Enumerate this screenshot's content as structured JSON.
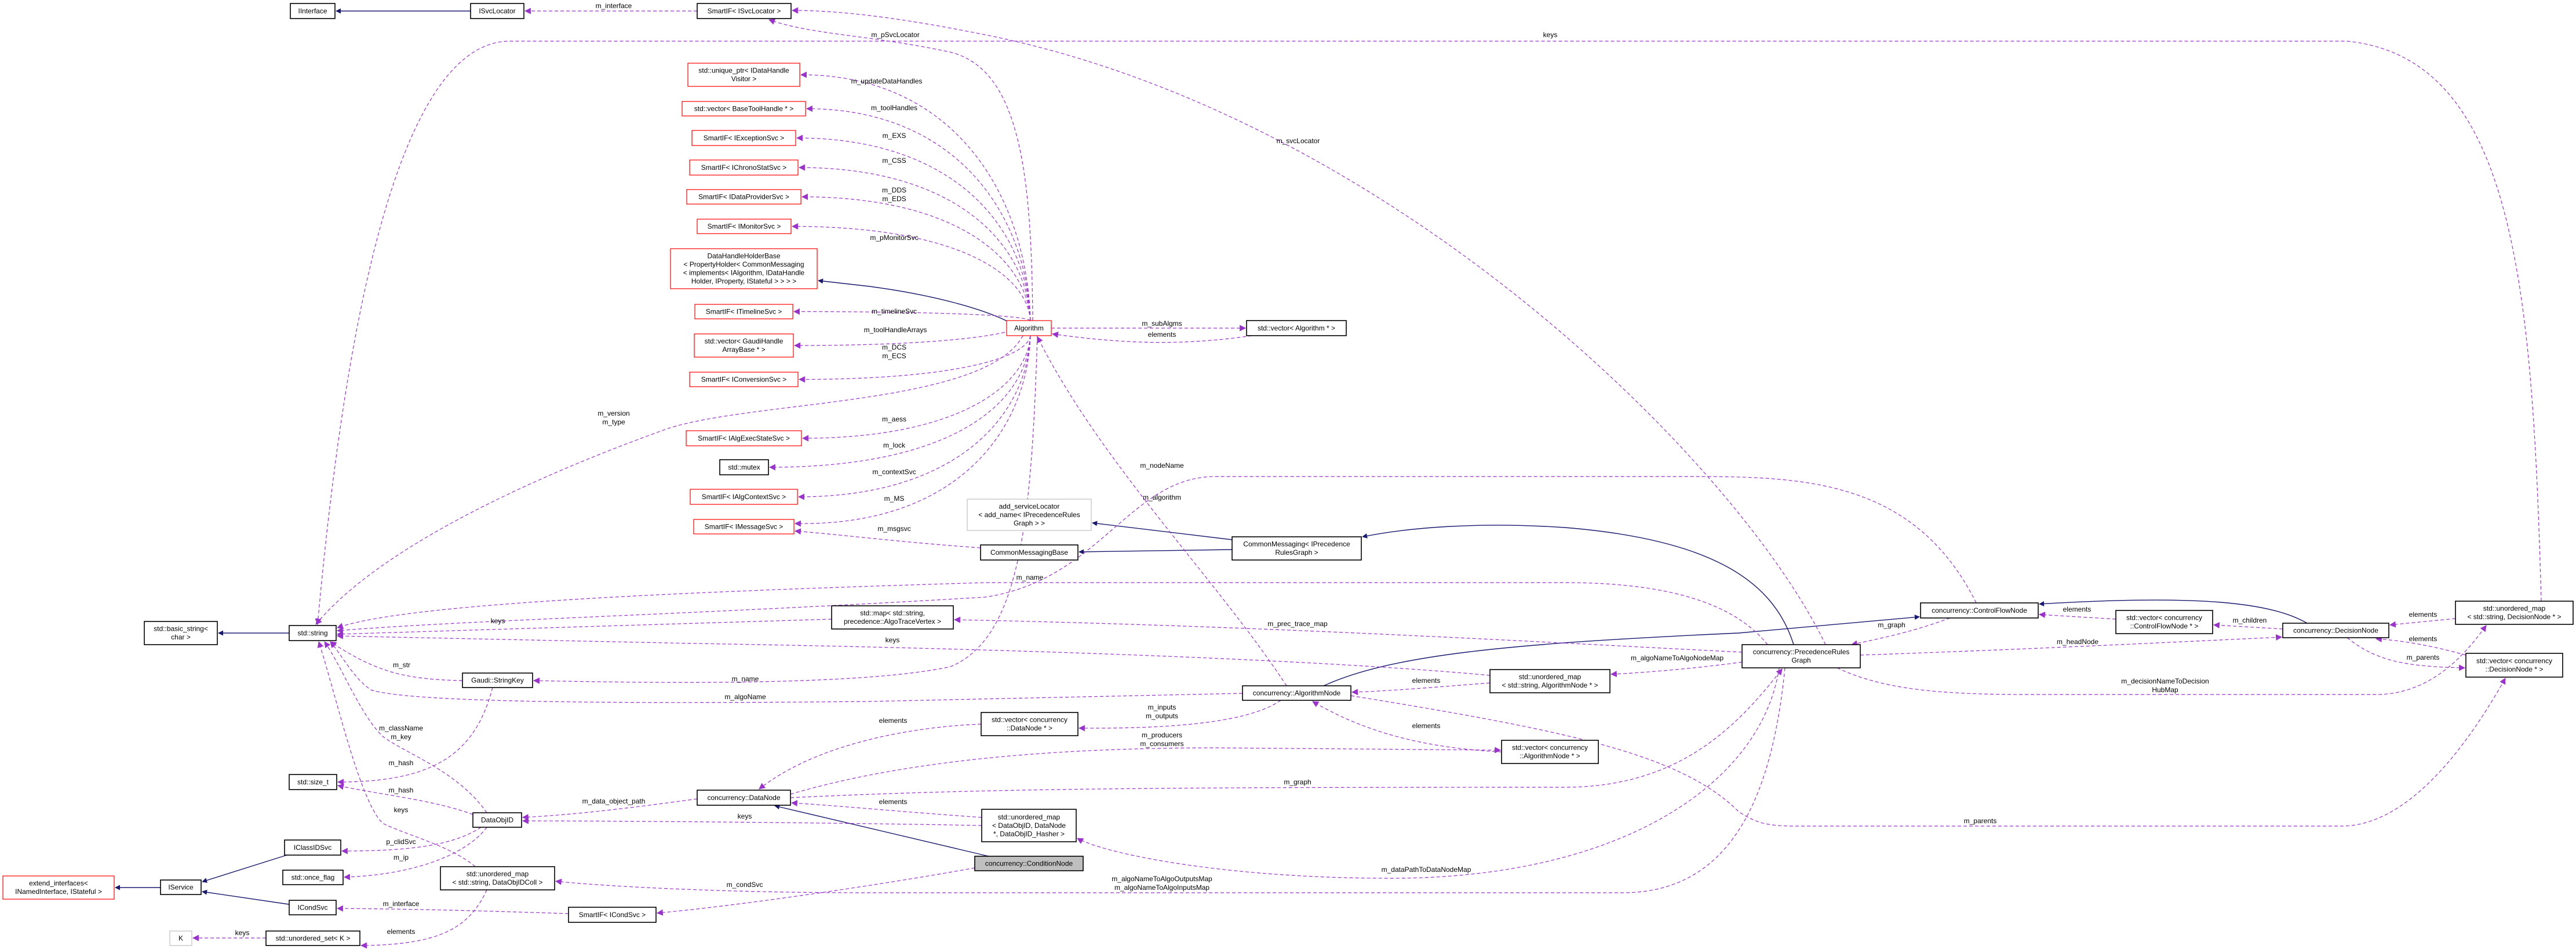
{
  "colors": {
    "inheritance_edge": "#191970",
    "usage_edge": "#9a32cd",
    "documented_border": "#000000",
    "undocumented_border": "#ff0000",
    "external_border": "#bfbfbf",
    "focus_fill": "#bfbfbf"
  },
  "nodes": {
    "iinterface": {
      "lines": [
        "IInterface"
      ],
      "border": "black"
    },
    "isvclocator": {
      "lines": [
        "ISvcLocator"
      ],
      "border": "black"
    },
    "smartif_svcloc": {
      "lines": [
        "SmartIF< ISvcLocator >"
      ],
      "border": "black"
    },
    "uptr_visitor": {
      "lines": [
        "std::unique_ptr< IDataHandle",
        "Visitor >"
      ],
      "border": "red"
    },
    "vec_toolhandle": {
      "lines": [
        "std::vector< BaseToolHandle * >"
      ],
      "border": "red"
    },
    "sif_exc": {
      "lines": [
        "SmartIF< IExceptionSvc >"
      ],
      "border": "red"
    },
    "sif_chrono": {
      "lines": [
        "SmartIF< IChronoStatSvc >"
      ],
      "border": "red"
    },
    "sif_dataprov": {
      "lines": [
        "SmartIF< IDataProviderSvc >"
      ],
      "border": "red"
    },
    "sif_monitor": {
      "lines": [
        "SmartIF< IMonitorSvc >"
      ],
      "border": "red"
    },
    "dhhb": {
      "lines": [
        "DataHandleHolderBase",
        "< PropertyHolder< CommonMessaging",
        "< implements< IAlgorithm, IDataHandle",
        "Holder, IProperty, IStateful > > > >"
      ],
      "border": "red"
    },
    "sif_timeline": {
      "lines": [
        "SmartIF< ITimelineSvc >"
      ],
      "border": "red"
    },
    "vec_gaudiarr": {
      "lines": [
        "std::vector< GaudiHandle",
        "ArrayBase * >"
      ],
      "border": "red"
    },
    "sif_conv": {
      "lines": [
        "SmartIF< IConversionSvc >"
      ],
      "border": "red"
    },
    "sif_aess": {
      "lines": [
        "SmartIF< IAlgExecStateSvc >"
      ],
      "border": "red"
    },
    "mutex": {
      "lines": [
        "std::mutex"
      ],
      "border": "black"
    },
    "sif_ctx": {
      "lines": [
        "SmartIF< IAlgContextSvc >"
      ],
      "border": "red"
    },
    "sif_msg": {
      "lines": [
        "SmartIF< IMessageSvc >"
      ],
      "border": "red"
    },
    "basic_string": {
      "lines": [
        "std::basic_string<",
        "char >"
      ],
      "border": "black"
    },
    "string": {
      "lines": [
        "std::string"
      ],
      "border": "black"
    },
    "stringkey": {
      "lines": [
        "Gaudi::StringKey"
      ],
      "border": "black"
    },
    "size_t": {
      "lines": [
        "std::size_t"
      ],
      "border": "black"
    },
    "dataobjid": {
      "lines": [
        "DataObjID"
      ],
      "border": "black"
    },
    "iclassid": {
      "lines": [
        "IClassIDSvc"
      ],
      "border": "black"
    },
    "onceflag": {
      "lines": [
        "std::once_flag"
      ],
      "border": "black"
    },
    "extend": {
      "lines": [
        "extend_interfaces<",
        "INamedInterface, IStateful >"
      ],
      "border": "red"
    },
    "iservice": {
      "lines": [
        "IService"
      ],
      "border": "black"
    },
    "icondsvc": {
      "lines": [
        "ICondSvc"
      ],
      "border": "black"
    },
    "umap_coll": {
      "lines": [
        "std::unordered_map",
        "< std::string, DataObjIDColl >"
      ],
      "border": "black"
    },
    "sif_cond": {
      "lines": [
        "SmartIF< ICondSvc >"
      ],
      "border": "black"
    },
    "K": {
      "lines": [
        "K"
      ],
      "border": "grey"
    },
    "uset_k": {
      "lines": [
        "std::unordered_set< K >"
      ],
      "border": "black"
    },
    "datanode": {
      "lines": [
        "concurrency::DataNode"
      ],
      "border": "black"
    },
    "map_trace": {
      "lines": [
        "std::map< std::string,",
        "precedence::AlgoTraceVertex >"
      ],
      "border": "black"
    },
    "algorithm": {
      "lines": [
        "Algorithm"
      ],
      "border": "red"
    },
    "vec_alg": {
      "lines": [
        "std::vector< Algorithm * >"
      ],
      "border": "black"
    },
    "add_svcloc": {
      "lines": [
        "add_serviceLocator",
        "< add_name< IPrecedenceRules",
        "Graph > >"
      ],
      "border": "grey"
    },
    "cmbase": {
      "lines": [
        "CommonMessagingBase"
      ],
      "border": "black"
    },
    "cm_prg": {
      "lines": [
        "CommonMessaging< IPrecedence",
        "RulesGraph >"
      ],
      "border": "black"
    },
    "algnode": {
      "lines": [
        "concurrency::AlgorithmNode"
      ],
      "border": "black"
    },
    "vec_datanode": {
      "lines": [
        "std::vector< concurrency",
        "::DataNode * >"
      ],
      "border": "black"
    },
    "umap_algnode": {
      "lines": [
        "std::unordered_map",
        "< std::string, AlgorithmNode * >"
      ],
      "border": "black"
    },
    "vec_algnode": {
      "lines": [
        "std::vector< concurrency",
        "::AlgorithmNode * >"
      ],
      "border": "black"
    },
    "umap_dataobjid": {
      "lines": [
        "std::unordered_map",
        "< DataObjID, DataNode",
        "*, DataObjID_Hasher >"
      ],
      "border": "black"
    },
    "condnode": {
      "lines": [
        "concurrency::ConditionNode"
      ],
      "border": "focus"
    },
    "cfn": {
      "lines": [
        "concurrency::ControlFlowNode"
      ],
      "border": "black"
    },
    "prg": {
      "lines": [
        "concurrency::PrecedenceRules",
        "Graph"
      ],
      "border": "black"
    },
    "vec_cfn": {
      "lines": [
        "std::vector< concurrency",
        "::ControlFlowNode * >"
      ],
      "border": "black"
    },
    "decision": {
      "lines": [
        "concurrency::DecisionNode"
      ],
      "border": "black"
    },
    "umap_decision": {
      "lines": [
        "std::unordered_map",
        "< std::string, DecisionNode * >"
      ],
      "border": "black"
    },
    "vec_decision": {
      "lines": [
        "std::vector< concurrency",
        "::DecisionNode * >"
      ],
      "border": "black"
    }
  },
  "edge_labels": {
    "m_interface_svcloc": [
      "m_interface"
    ],
    "keys_top": [
      "keys"
    ],
    "m_pSvcLocator": [
      "m_pSvcLocator"
    ],
    "m_svcLocator": [
      "m_svcLocator"
    ],
    "m_updateDataHandles": [
      "m_updateDataHandles"
    ],
    "m_toolHandles": [
      "m_toolHandles"
    ],
    "m_EXS": [
      "m_EXS"
    ],
    "m_CSS": [
      "m_CSS"
    ],
    "m_DDS": [
      "m_DDS",
      "m_EDS"
    ],
    "m_pMonitorSvc": [
      "m_pMonitorSvc"
    ],
    "m_timelineSvc": [
      "m_timelineSvc"
    ],
    "m_toolHandleArrays": [
      "m_toolHandleArrays"
    ],
    "m_DCS": [
      "m_DCS",
      "m_ECS"
    ],
    "m_version": [
      "m_version",
      "m_type"
    ],
    "m_aess": [
      "m_aess"
    ],
    "m_lock": [
      "m_lock"
    ],
    "m_contextSvc": [
      "m_contextSvc"
    ],
    "m_MS": [
      "m_MS"
    ],
    "m_msgsvc": [
      "m_msgsvc"
    ],
    "m_subAlgms": [
      "m_subAlgms"
    ],
    "elements_alg": [
      "elements"
    ],
    "m_nodeName": [
      "m_nodeName"
    ],
    "m_algorithm": [
      "m_algorithm"
    ],
    "m_name_prg": [
      "m_name"
    ],
    "keys_trace": [
      "keys"
    ],
    "m_prec_trace_map": [
      "m_prec_trace_map"
    ],
    "keys_algnode": [
      "keys"
    ],
    "m_algoNameToAlgoNodeMap": [
      "m_algoNameToAlgoNodeMap"
    ],
    "elements_umap_algnode": [
      "elements"
    ],
    "m_str": [
      "m_str"
    ],
    "m_name_key": [
      "m_name"
    ],
    "m_algoName": [
      "m_algoName"
    ],
    "m_className": [
      "m_className",
      "m_key"
    ],
    "m_hash_key": [
      "m_hash"
    ],
    "m_hash_id": [
      "m_hash"
    ],
    "keys_coll": [
      "keys"
    ],
    "p_clidSvc": [
      "p_clidSvc"
    ],
    "m_ip": [
      "m_ip"
    ],
    "m_interface_cond": [
      "m_interface"
    ],
    "keys_k": [
      "keys"
    ],
    "elements_uset": [
      "elements"
    ],
    "m_data_object_path": [
      "m_data_object_path"
    ],
    "keys_dataobjid": [
      "keys"
    ],
    "m_condSvc": [
      "m_condSvc"
    ],
    "elements_vec_datanode": [
      "elements"
    ],
    "m_inputs": [
      "m_inputs",
      "m_outputs"
    ],
    "m_producers": [
      "m_producers",
      "m_consumers"
    ],
    "elements_vec_algnode": [
      "elements"
    ],
    "m_graph_datanode": [
      "m_graph"
    ],
    "elements_umap_dataobjid": [
      "elements"
    ],
    "m_dataPathToDataNodeMap": [
      "m_dataPathToDataNodeMap"
    ],
    "m_algoNameMaps": [
      "m_algoNameToAlgoOutputsMap",
      "m_algoNameToAlgoInputsMap"
    ],
    "elements_vec_cfn": [
      "elements"
    ],
    "m_graph_cfn": [
      "m_graph"
    ],
    "m_children": [
      "m_children"
    ],
    "elements_umap_decision": [
      "elements"
    ],
    "elements_vec_decision": [
      "elements"
    ],
    "m_parents_decision": [
      "m_parents"
    ],
    "m_headNode": [
      "m_headNode"
    ],
    "m_decisionNameToDecisionHubMap": [
      "m_decisionNameToDecision",
      "HubMap"
    ],
    "m_parents_algnode": [
      "m_parents"
    ]
  }
}
